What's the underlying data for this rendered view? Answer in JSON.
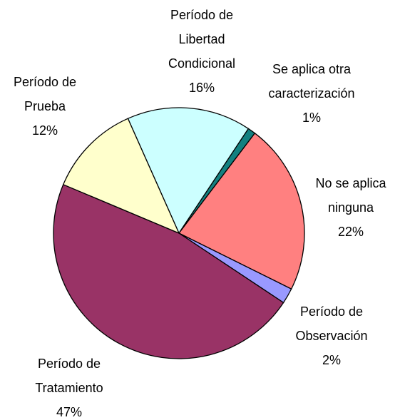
{
  "chart_data": {
    "type": "pie",
    "categories": [
      "Período de Libertad Condicional",
      "Se aplica otra caracterización",
      "No se aplica ninguna",
      "Período de Observación",
      "Período de Tratamiento",
      "Período de Prueba"
    ],
    "values": [
      16,
      1,
      22,
      2,
      47,
      12
    ],
    "value_labels": [
      "16%",
      "1%",
      "22%",
      "2%",
      "47%",
      "12%"
    ],
    "colors": [
      "#ccffff",
      "#138080",
      "#ff8080",
      "#9999ff",
      "#993366",
      "#ffffcc"
    ]
  }
}
